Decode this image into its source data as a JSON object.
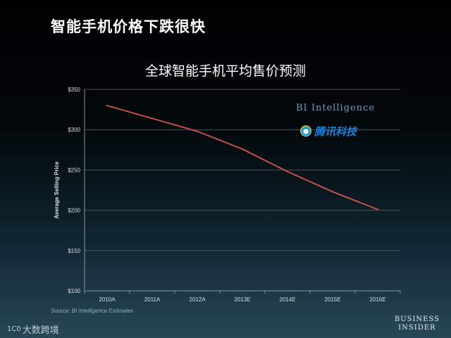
{
  "slide": {
    "title": "智能手机价格下跌很快",
    "source": "Source: BI Intelligence Estimates",
    "watermark": "大数跨境",
    "watermark_mark": "1C0",
    "brand_bi": "BI Intelligence",
    "brand_tencent": "腾讯科技",
    "logo_line1": "Business",
    "logo_line2": "Insider"
  },
  "colors": {
    "line": "#c0504d",
    "grid": "#4a5358",
    "axis": "#8a9398",
    "tick_label": "#d9dee1"
  },
  "chart_data": {
    "type": "line",
    "title": "全球智能手机平均售价预测",
    "xlabel": "",
    "ylabel": "Average Selling Price",
    "categories": [
      "2010A",
      "2011A",
      "2012A",
      "2013E",
      "2014E",
      "2015E",
      "2016E"
    ],
    "series": [
      {
        "values": [
          330,
          314,
          298,
          276,
          248,
          223,
          201
        ]
      }
    ],
    "ylim": [
      100,
      350
    ],
    "yticks": [
      100,
      150,
      200,
      250,
      300,
      350
    ],
    "ytick_labels": [
      "$100",
      "$150",
      "$200",
      "$250",
      "$300",
      "$350"
    ],
    "grid": true,
    "legend": "none"
  }
}
